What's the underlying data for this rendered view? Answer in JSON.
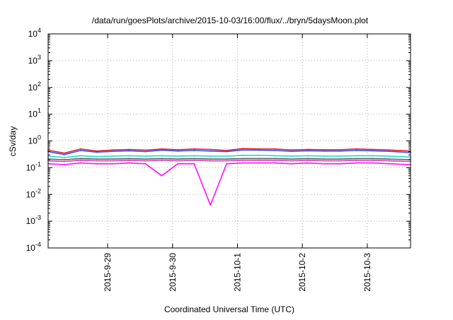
{
  "chart_data": {
    "type": "line",
    "title": "/data/run/goesPlots/archive/2015-10-03/16:00/flux/../bryn/5daysMoon.plot",
    "xlabel": "Coordinated Universal Time (UTC)",
    "ylabel": "cSv/day",
    "y_scale": "log",
    "ylim": [
      0.0001,
      10000
    ],
    "y_tick_labels": [
      {
        "base": "10",
        "exp": "-4",
        "value": 0.0001
      },
      {
        "base": "10",
        "exp": "-3",
        "value": 0.001
      },
      {
        "base": "10",
        "exp": "-2",
        "value": 0.01
      },
      {
        "base": "10",
        "exp": "-1",
        "value": 0.1
      },
      {
        "base": "10",
        "exp": "0",
        "value": 1
      },
      {
        "base": "10",
        "exp": "1",
        "value": 10
      },
      {
        "base": "10",
        "exp": "2",
        "value": 100
      },
      {
        "base": "10",
        "exp": "3",
        "value": 1000
      },
      {
        "base": "10",
        "exp": "4",
        "value": 10000
      }
    ],
    "xlim": [
      "2015-09-28T02:00",
      "2015-10-03T16:00"
    ],
    "x_tick_labels": [
      {
        "label": "2015-9-29",
        "t": "2015-09-29T00:00"
      },
      {
        "label": "2015-9-30",
        "t": "2015-09-30T00:00"
      },
      {
        "label": "2015-10-1",
        "t": "2015-10-01T00:00"
      },
      {
        "label": "2015-10-2",
        "t": "2015-10-02T00:00"
      },
      {
        "label": "2015-10-3",
        "t": "2015-10-03T00:00"
      }
    ],
    "grid": true,
    "legend": "none",
    "x": [
      "2015-09-28T02:00",
      "2015-09-28T08:00",
      "2015-09-28T14:00",
      "2015-09-28T20:00",
      "2015-09-29T02:00",
      "2015-09-29T08:00",
      "2015-09-29T14:00",
      "2015-09-29T20:00",
      "2015-09-30T02:00",
      "2015-09-30T08:00",
      "2015-09-30T14:00",
      "2015-09-30T20:00",
      "2015-10-01T02:00",
      "2015-10-01T08:00",
      "2015-10-01T14:00",
      "2015-10-01T20:00",
      "2015-10-02T02:00",
      "2015-10-02T08:00",
      "2015-10-02T14:00",
      "2015-10-02T20:00",
      "2015-10-03T02:00",
      "2015-10-03T08:00",
      "2015-10-03T16:00"
    ],
    "series": [
      {
        "color": "#e8202a",
        "values": [
          0.45,
          0.35,
          0.5,
          0.42,
          0.46,
          0.48,
          0.45,
          0.5,
          0.47,
          0.5,
          0.48,
          0.44,
          0.52,
          0.5,
          0.5,
          0.46,
          0.48,
          0.47,
          0.47,
          0.5,
          0.48,
          0.46,
          0.42
        ]
      },
      {
        "color": "#3050f0",
        "values": [
          0.4,
          0.31,
          0.44,
          0.38,
          0.41,
          0.43,
          0.4,
          0.45,
          0.42,
          0.44,
          0.42,
          0.4,
          0.46,
          0.45,
          0.44,
          0.41,
          0.43,
          0.42,
          0.42,
          0.44,
          0.43,
          0.41,
          0.37
        ]
      },
      {
        "color": "#20d8d0",
        "values": [
          0.27,
          0.24,
          0.28,
          0.26,
          0.27,
          0.28,
          0.27,
          0.28,
          0.27,
          0.28,
          0.27,
          0.27,
          0.29,
          0.29,
          0.28,
          0.27,
          0.28,
          0.27,
          0.27,
          0.28,
          0.28,
          0.27,
          0.25
        ]
      },
      {
        "color": "#606060",
        "values": [
          0.21,
          0.2,
          0.22,
          0.21,
          0.21,
          0.22,
          0.21,
          0.22,
          0.21,
          0.22,
          0.21,
          0.21,
          0.22,
          0.22,
          0.22,
          0.21,
          0.22,
          0.21,
          0.21,
          0.22,
          0.22,
          0.21,
          0.2
        ]
      },
      {
        "color": "#d040b0",
        "values": [
          0.18,
          0.17,
          0.19,
          0.18,
          0.18,
          0.19,
          0.18,
          0.19,
          0.18,
          0.19,
          0.18,
          0.18,
          0.19,
          0.19,
          0.19,
          0.18,
          0.19,
          0.18,
          0.18,
          0.19,
          0.19,
          0.18,
          0.17
        ]
      },
      {
        "color": "#ff10ff",
        "values": [
          0.14,
          0.13,
          0.15,
          0.14,
          0.14,
          0.15,
          0.14,
          0.05,
          0.14,
          0.14,
          0.004,
          0.14,
          0.15,
          0.15,
          0.15,
          0.14,
          0.15,
          0.14,
          0.14,
          0.15,
          0.15,
          0.14,
          0.13
        ]
      }
    ]
  }
}
